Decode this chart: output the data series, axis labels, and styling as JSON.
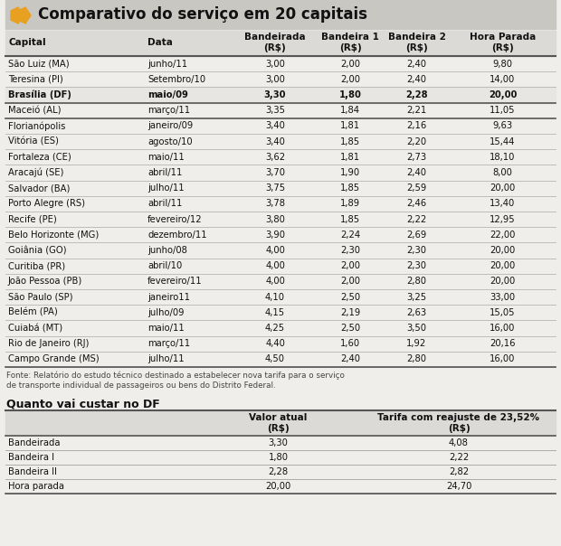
{
  "title": "Comparativo do serviço em 20 capitais",
  "header_cols": [
    "Capital",
    "Data",
    "Bandeirada\n(R$)",
    "Bandeira 1\n(R$)",
    "Bandeira 2\n(R$)",
    "Hora Parada\n(R$)"
  ],
  "rows": [
    [
      "São Luiz (MA)",
      "junho/11",
      "3,00",
      "2,00",
      "2,40",
      "9,80"
    ],
    [
      "Teresina (PI)",
      "Setembro/10",
      "3,00",
      "2,00",
      "2,40",
      "14,00"
    ],
    [
      "Brasília (DF)",
      "maio/09",
      "3,30",
      "1,80",
      "2,28",
      "20,00"
    ],
    [
      "Maceió (AL)",
      "março/11",
      "3,35",
      "1,84",
      "2,21",
      "11,05"
    ],
    [
      "Florianópolis",
      "janeiro/09",
      "3,40",
      "1,81",
      "2,16",
      "9,63"
    ],
    [
      "Vitória (ES)",
      "agosto/10",
      "3,40",
      "1,85",
      "2,20",
      "15,44"
    ],
    [
      "Fortaleza (CE)",
      "maio/11",
      "3,62",
      "1,81",
      "2,73",
      "18,10"
    ],
    [
      "Aracajú (SE)",
      "abril/11",
      "3,70",
      "1,90",
      "2,40",
      "8,00"
    ],
    [
      "Salvador (BA)",
      "julho/11",
      "3,75",
      "1,85",
      "2,59",
      "20,00"
    ],
    [
      "Porto Alegre (RS)",
      "abril/11",
      "3,78",
      "1,89",
      "2,46",
      "13,40"
    ],
    [
      "Recife (PE)",
      "fevereiro/12",
      "3,80",
      "1,85",
      "2,22",
      "12,95"
    ],
    [
      "Belo Horizonte (MG)",
      "dezembro/11",
      "3,90",
      "2,24",
      "2,69",
      "22,00"
    ],
    [
      "Goiânia (GO)",
      "junho/08",
      "4,00",
      "2,30",
      "2,30",
      "20,00"
    ],
    [
      "Curitiba (PR)",
      "abril/10",
      "4,00",
      "2,00",
      "2,30",
      "20,00"
    ],
    [
      "João Pessoa (PB)",
      "fevereiro/11",
      "4,00",
      "2,00",
      "2,80",
      "20,00"
    ],
    [
      "São Paulo (SP)",
      "janeiro11",
      "4,10",
      "2,50",
      "3,25",
      "33,00"
    ],
    [
      "Belém (PA)",
      "julho/09",
      "4,15",
      "2,19",
      "2,63",
      "15,05"
    ],
    [
      "Cuiabá (MT)",
      "maio/11",
      "4,25",
      "2,50",
      "3,50",
      "16,00"
    ],
    [
      "Rio de Janeiro (RJ)",
      "março/11",
      "4,40",
      "1,60",
      "1,92",
      "20,16"
    ],
    [
      "Campo Grande (MS)",
      "julho/11",
      "4,50",
      "2,40",
      "2,80",
      "16,00"
    ]
  ],
  "brasilia_row_idx": 2,
  "bold_rows": [
    2
  ],
  "fonte_text": "Fonte: Relatório do estudo técnico destinado a estabelecer nova tarifa para o serviço\nde transporte individual de passageiros ou bens do Distrito Federal.",
  "section2_title": "Quanto vai custar no DF",
  "section2_rows": [
    [
      "Bandeirada",
      "3,30",
      "4,08"
    ],
    [
      "Bandeira I",
      "1,80",
      "2,22"
    ],
    [
      "Bandeira II",
      "2,28",
      "2,82"
    ],
    [
      "Hora parada",
      "20,00",
      "24,70"
    ]
  ],
  "bg_color": "#f0eeeb",
  "title_bg": "#c9c7c2",
  "header_bg": "#dcdad6",
  "brasilia_bg": "#e8e6e2",
  "sec2_header_bg": "#dcdad6",
  "chevron_color": "#e8a020",
  "thick_line_color": "#555555",
  "thin_line_color": "#aaaaaa",
  "text_color": "#111111",
  "fonte_color": "#444444"
}
